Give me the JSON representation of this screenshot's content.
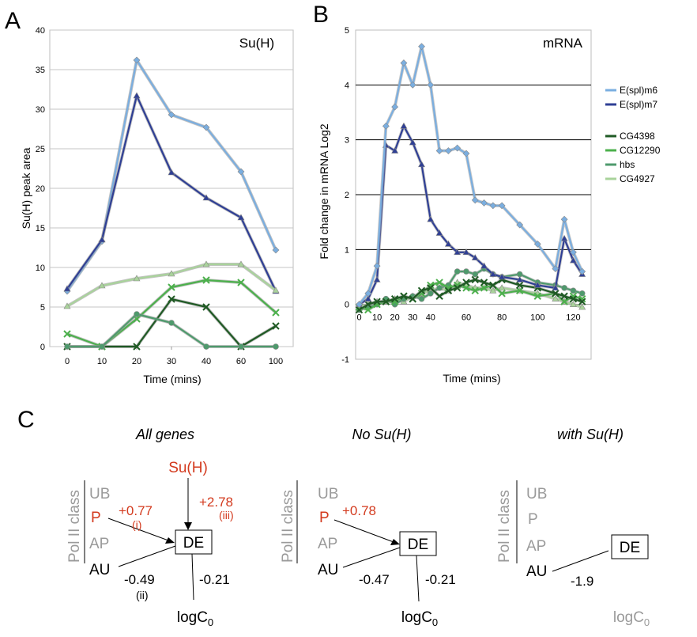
{
  "panel_labels": {
    "a": "A",
    "b": "B",
    "c": "C"
  },
  "chart_data": [
    {
      "type": "line",
      "panel": "A",
      "title": "Su(H)",
      "xlabel": "Time (mins)",
      "ylabel": "Su(H) peak area",
      "ylim": [
        0,
        40
      ],
      "yticks": [
        0,
        5,
        10,
        15,
        20,
        25,
        30,
        35,
        40
      ],
      "categories": [
        "0",
        "10",
        "20",
        "30",
        "40",
        "60",
        "100"
      ],
      "grid": true,
      "series": [
        {
          "name": "E(spl)m6",
          "color": "#7aaee0",
          "marker": "diamond",
          "values": [
            7.0,
            13.3,
            36.2,
            29.3,
            27.7,
            22.1,
            12.2
          ]
        },
        {
          "name": "E(spl)m7",
          "color": "#2f3f95",
          "marker": "triangle",
          "values": [
            7.3,
            13.5,
            31.7,
            22.0,
            18.8,
            16.3,
            7.0
          ]
        },
        {
          "name": "CG4398",
          "color": "#1f5a24",
          "marker": "x",
          "values": [
            0,
            0,
            0,
            6.0,
            5.0,
            0,
            2.6
          ]
        },
        {
          "name": "CG12290",
          "color": "#4cb04c",
          "marker": "x",
          "values": [
            1.6,
            0,
            3.5,
            7.5,
            8.4,
            8.1,
            4.3
          ]
        },
        {
          "name": "hbs",
          "color": "#4e9a6c",
          "marker": "circle",
          "values": [
            0,
            0,
            4.1,
            3.0,
            0,
            0,
            0
          ]
        },
        {
          "name": "CG4927",
          "color": "#a9d39b",
          "marker": "triangle",
          "values": [
            5.1,
            7.7,
            8.6,
            9.2,
            10.4,
            10.4,
            7.1
          ]
        }
      ]
    },
    {
      "type": "line",
      "panel": "B",
      "title": "mRNA",
      "xlabel": "Time (mins)",
      "ylabel": "Fold change in mRNA Log2",
      "ylim": [
        -1,
        5
      ],
      "yticks": [
        -1,
        0,
        1,
        2,
        3,
        4,
        5
      ],
      "xlim": [
        -2,
        130
      ],
      "xticks": [
        0,
        10,
        20,
        30,
        40,
        60,
        80,
        100,
        120
      ],
      "xtick_labels": [
        "0",
        "10",
        "20",
        "30",
        "40",
        "60",
        "80",
        "100",
        "120"
      ],
      "grid": true,
      "x": [
        0,
        5,
        10,
        15,
        20,
        25,
        30,
        35,
        40,
        45,
        50,
        55,
        60,
        65,
        70,
        75,
        80,
        90,
        100,
        110,
        115,
        120,
        125
      ],
      "series": [
        {
          "name": "E(spl)m6",
          "values": [
            0,
            0.2,
            0.7,
            3.25,
            3.6,
            4.4,
            4.0,
            4.7,
            4.0,
            2.8,
            2.8,
            2.85,
            2.75,
            1.9,
            1.85,
            1.8,
            1.8,
            1.45,
            1.1,
            0.65,
            1.55,
            0.95,
            0.6
          ]
        },
        {
          "name": "E(spl)m7",
          "values": [
            0,
            0.1,
            0.45,
            2.9,
            2.8,
            3.25,
            2.95,
            2.55,
            1.55,
            1.3,
            1.1,
            0.95,
            0.95,
            0.85,
            0.7,
            0.55,
            0.5,
            0.45,
            0.35,
            0.3,
            1.2,
            0.8,
            0.55
          ]
        },
        {
          "name": "CG4398",
          "values": [
            -0.1,
            0.0,
            0.05,
            0.05,
            0.1,
            0.15,
            0.1,
            0.25,
            0.3,
            0.15,
            0.25,
            0.3,
            0.4,
            0.45,
            0.4,
            0.35,
            0.45,
            0.35,
            0.3,
            0.2,
            0.15,
            0.1,
            0.05
          ]
        },
        {
          "name": "CG12290",
          "values": [
            -0.05,
            -0.1,
            0.0,
            0.05,
            0.05,
            0.15,
            0.1,
            0.2,
            0.35,
            0.4,
            0.3,
            0.35,
            0.3,
            0.25,
            0.3,
            0.35,
            0.2,
            0.25,
            0.15,
            0.2,
            0.05,
            0.15,
            0.1
          ]
        },
        {
          "name": "hbs",
          "values": [
            -0.1,
            -0.05,
            0.0,
            0.1,
            0.0,
            0.1,
            0.15,
            0.1,
            0.2,
            0.3,
            0.35,
            0.6,
            0.6,
            0.55,
            0.65,
            0.55,
            0.5,
            0.55,
            0.4,
            0.35,
            0.3,
            0.25,
            0.2
          ]
        },
        {
          "name": "CG4927",
          "values": [
            -0.05,
            0.0,
            0.05,
            0.05,
            0.1,
            0.05,
            0.15,
            0.2,
            0.25,
            0.3,
            0.25,
            0.4,
            0.35,
            0.3,
            0.3,
            0.25,
            0.3,
            0.25,
            0.2,
            0.1,
            0.05,
            0.0,
            -0.05
          ]
        }
      ]
    }
  ],
  "legend": {
    "groups": [
      [
        {
          "name": "E(spl)m6",
          "color": "#7aaee0"
        },
        {
          "name": "E(spl)m7",
          "color": "#2f3f95"
        }
      ],
      [
        {
          "name": "CG4398",
          "color": "#1f5a24"
        },
        {
          "name": "CG12290",
          "color": "#4cb04c"
        },
        {
          "name": "hbs",
          "color": "#4e9a6c"
        },
        {
          "name": "CG4927",
          "color": "#a9d39b"
        }
      ]
    ]
  },
  "diagrams": [
    {
      "title": "All genes",
      "class_label": "Pol II class",
      "classes": [
        "UB",
        "P",
        "AP",
        "AU"
      ],
      "de": "DE",
      "su": "Su(H)",
      "log_c0": "logC",
      "log_c0_sub": "0",
      "p_coef": "+0.77",
      "p_note": "(i)",
      "su_coef": "+2.78",
      "su_note": "(iii)",
      "au_coef": "-0.49",
      "au_note": "(ii)",
      "c0_coef": "-0.21"
    },
    {
      "title": "No Su(H)",
      "class_label": "Pol II class",
      "classes": [
        "UB",
        "P",
        "AP",
        "AU"
      ],
      "de": "DE",
      "log_c0": "logC",
      "log_c0_sub": "0",
      "p_coef": "+0.78",
      "au_coef": "-0.47",
      "c0_coef": "-0.21"
    },
    {
      "title": "with Su(H)",
      "class_label": "Pol II class",
      "classes": [
        "UB",
        "P",
        "AP",
        "AU"
      ],
      "de": "DE",
      "log_c0": "logC",
      "log_c0_sub": "0",
      "au_coef": "-1.9"
    }
  ]
}
